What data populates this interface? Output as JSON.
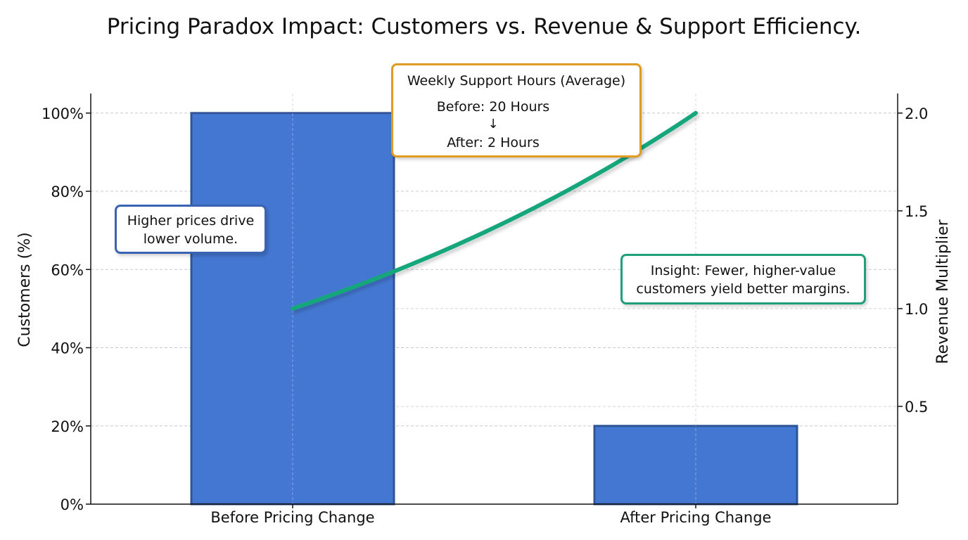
{
  "chart_data": {
    "type": "bar",
    "title": "Pricing Paradox Impact: Customers vs. Revenue & Support Efficiency.",
    "categories": [
      "Before Pricing Change",
      "After Pricing Change"
    ],
    "series": [
      {
        "values": [
          100,
          20
        ],
        "axis": "left",
        "color": "#4477d1"
      },
      {
        "type": "line",
        "values": [
          1.0,
          2.0
        ],
        "axis": "right",
        "color": "#19a67c"
      }
    ],
    "ylabel": "Customers (%)",
    "ylim": [
      0,
      105
    ],
    "yticks": [
      "0%",
      "20%",
      "40%",
      "60%",
      "80%",
      "100%"
    ],
    "y2label": "Revenue Multiplier",
    "y2lim": [
      0,
      2.1
    ],
    "y2ticks": [
      "0.5",
      "1.0",
      "1.5",
      "2.0"
    ],
    "grid": true,
    "annotations": {
      "left_note": [
        "Higher prices drive",
        "lower volume."
      ],
      "right_note": [
        "Insight: Fewer, higher-value",
        "customers yield better margins."
      ],
      "support_title": "Weekly Support Hours (Average)",
      "support_before": "Before: 20 Hours",
      "support_arrow": "↓",
      "support_after": "After: 2 Hours",
      "support_values": [
        20,
        2
      ]
    }
  },
  "colors": {
    "bar_fill": "#4477d1",
    "bar_edge": "#2f5596",
    "line": "#19a67c",
    "support_line": "#e19b22"
  }
}
